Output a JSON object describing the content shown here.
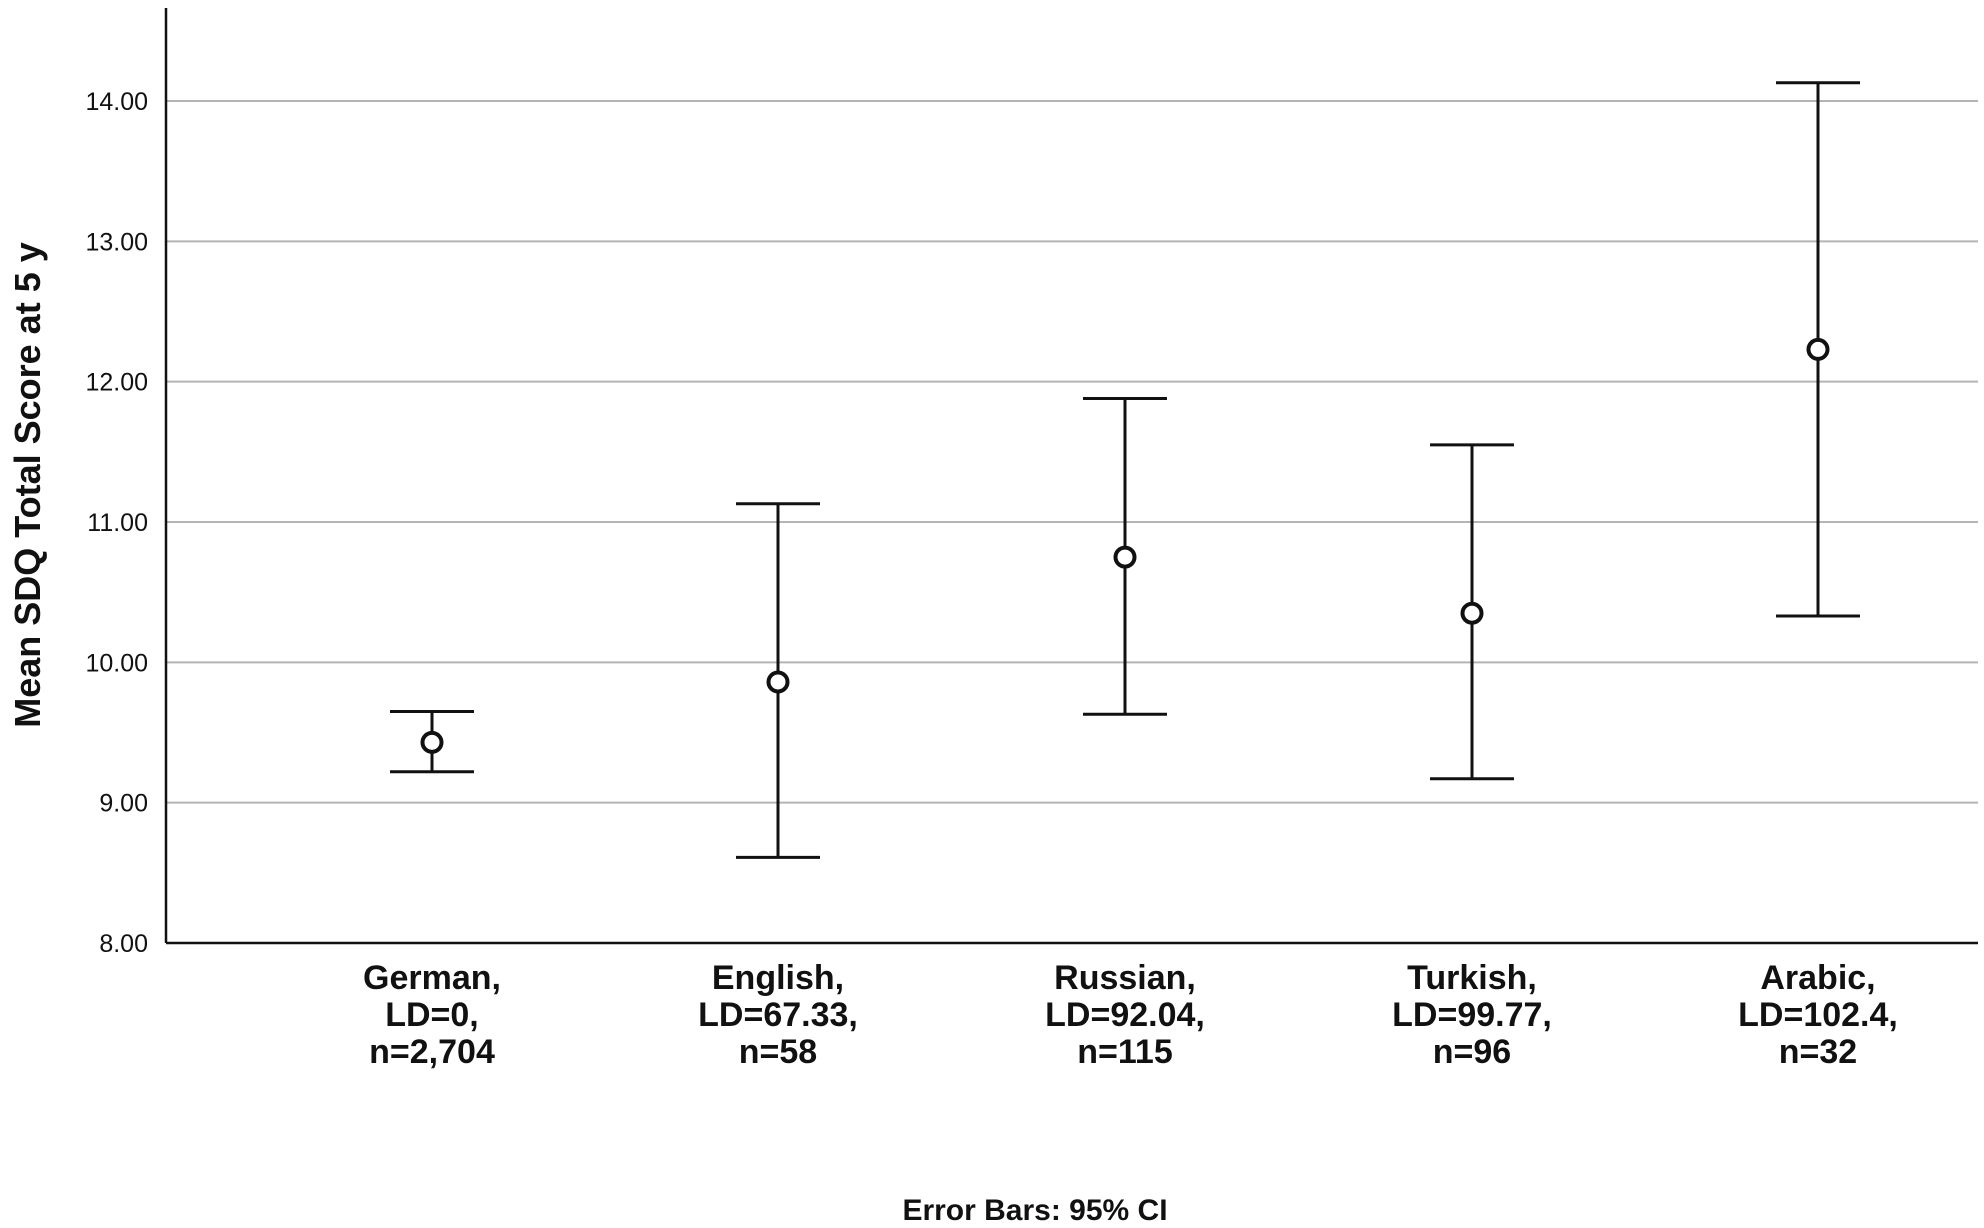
{
  "chart_data": {
    "type": "errorbar",
    "ylabel": "Mean SDQ Total Score at 5 y",
    "ylim": [
      8,
      14.6
    ],
    "yticks": [
      "8.00",
      "9.00",
      "10.00",
      "11.00",
      "12.00",
      "13.00",
      "14.00"
    ],
    "grid": true,
    "categories": [
      [
        "German,",
        "LD=0,",
        "n=2,704"
      ],
      [
        "English,",
        "LD=67.33,",
        "n=58"
      ],
      [
        "Russian,",
        "LD=92.04,",
        "n=115"
      ],
      [
        "Turkish,",
        "LD=99.77,",
        "n=96"
      ],
      [
        "Arabic,",
        "LD=102.4,",
        "n=32"
      ]
    ],
    "means": [
      9.43,
      9.86,
      10.75,
      10.35,
      12.23
    ],
    "ci_lower": [
      9.22,
      8.61,
      9.63,
      9.17,
      10.33
    ],
    "ci_upper": [
      9.65,
      11.13,
      11.88,
      11.55,
      14.13
    ],
    "footnote": "Error Bars: 95% CI"
  }
}
